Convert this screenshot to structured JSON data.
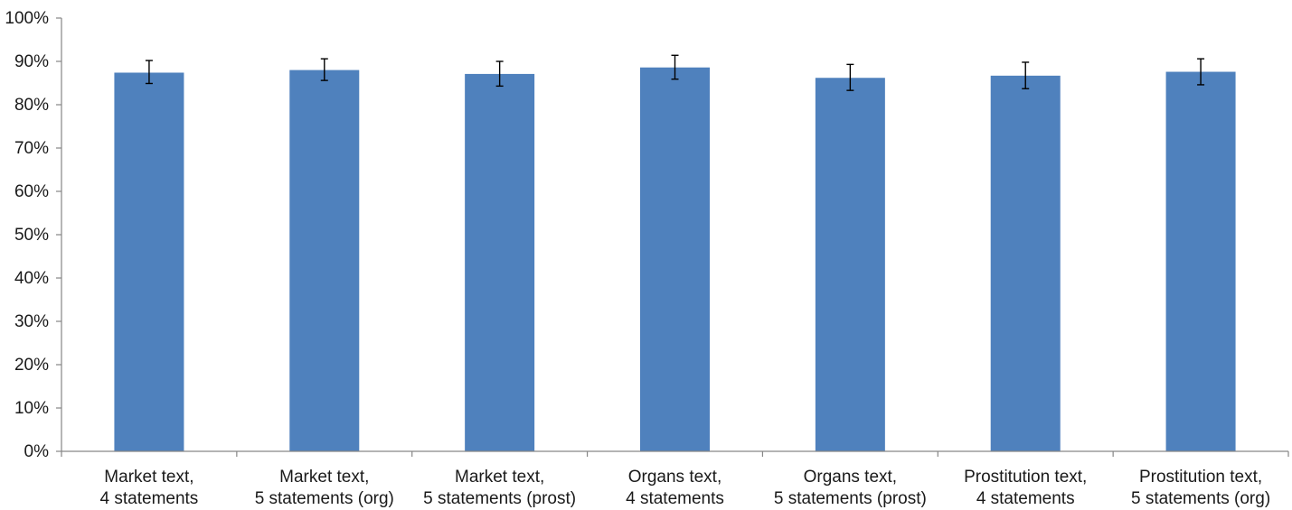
{
  "chart_data": {
    "type": "bar",
    "categories": [
      [
        "Market text,",
        "4 statements"
      ],
      [
        "Market text,",
        "5 statements (org)"
      ],
      [
        "Market text,",
        "5 statements (prost)"
      ],
      [
        "Organs text,",
        "4 statements"
      ],
      [
        "Organs text,",
        "5 statements (prost)"
      ],
      [
        "Prostitution text,",
        "4 statements"
      ],
      [
        "Prostitution text,",
        "5 statements (org)"
      ]
    ],
    "values": [
      0.874,
      0.88,
      0.871,
      0.886,
      0.862,
      0.867,
      0.876
    ],
    "error_low": [
      0.849,
      0.856,
      0.843,
      0.859,
      0.833,
      0.837,
      0.846
    ],
    "error_high": [
      0.902,
      0.906,
      0.9,
      0.914,
      0.893,
      0.898,
      0.906
    ],
    "ylim": [
      0,
      1
    ],
    "ytick_values": [
      0,
      0.1,
      0.2,
      0.3,
      0.4,
      0.5,
      0.6,
      0.7,
      0.8,
      0.9,
      1.0
    ],
    "ytick_labels": [
      "0%",
      "10%",
      "20%",
      "30%",
      "40%",
      "50%",
      "60%",
      "70%",
      "80%",
      "90%",
      "100%"
    ],
    "bar_color": "#4f81bd",
    "grid": false,
    "legend": false
  }
}
